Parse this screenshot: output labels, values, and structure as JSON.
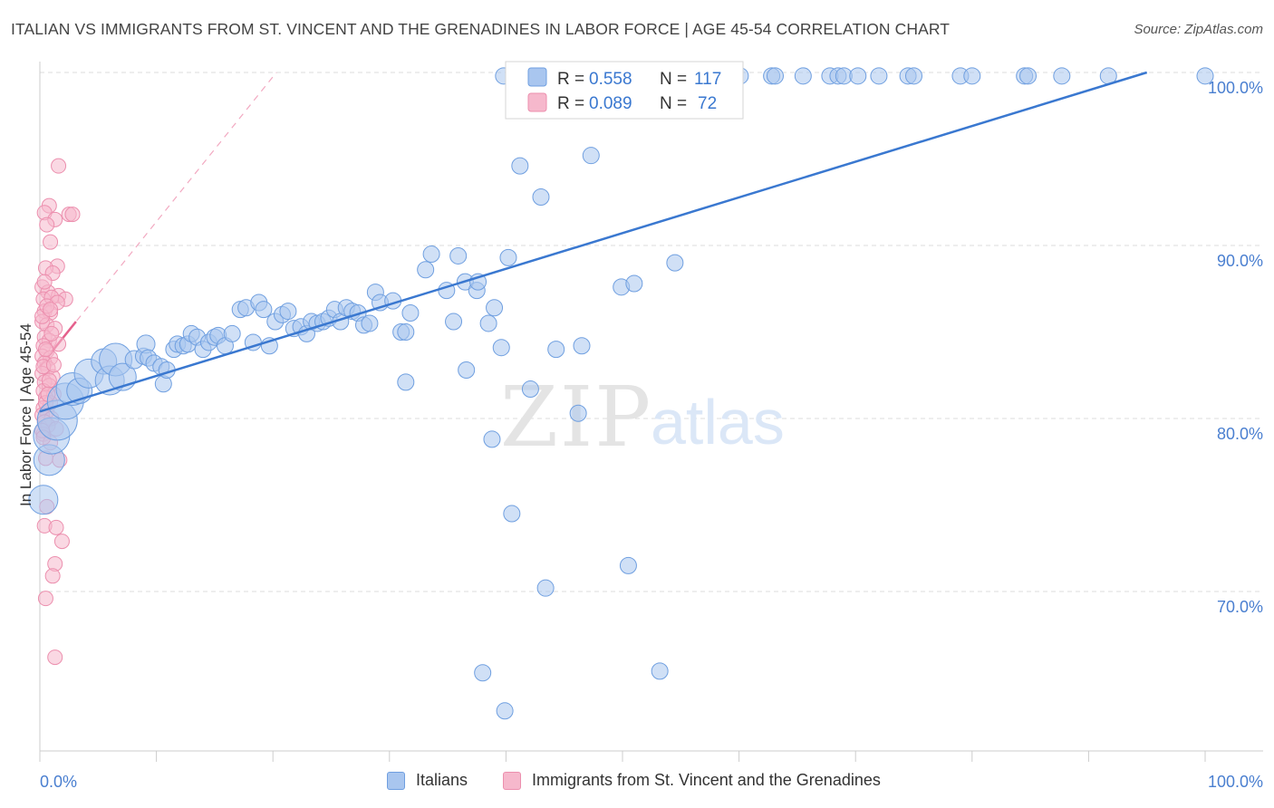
{
  "title": "ITALIAN VS IMMIGRANTS FROM ST. VINCENT AND THE GRENADINES IN LABOR FORCE | AGE 45-54 CORRELATION CHART",
  "source": "Source: ZipAtlas.com",
  "watermark": {
    "zip": "ZIP",
    "atlas": "atlas"
  },
  "legend_box": {
    "rows": [
      {
        "r_label": "R = ",
        "r_value": "0.558",
        "n_label": "N = ",
        "n_value": "117"
      },
      {
        "r_label": "R = ",
        "r_value": "0.089",
        "n_label": "N = ",
        "n_value": "72"
      }
    ]
  },
  "bottom_legend": {
    "items": [
      "Italians",
      "Immigrants from St. Vincent and the Grenadines"
    ]
  },
  "colors": {
    "blue_fill": "#a9c6ef",
    "blue_stroke": "#6f9fe0",
    "blue_line": "#3a78d0",
    "pink_fill": "#f6b8cc",
    "pink_stroke": "#ec8fae",
    "pink_line": "#e5608c",
    "axis_text": "#4a7fd0",
    "grid": "#dddddd"
  },
  "chart_data": {
    "type": "scatter",
    "title": "ITALIAN VS IMMIGRANTS FROM ST. VINCENT AND THE GRENADINES IN LABOR FORCE | AGE 45-54 CORRELATION CHART",
    "xlabel": "",
    "ylabel": "In Labor Force | Age 45-54",
    "xlim": [
      0,
      100
    ],
    "ylim": [
      61,
      101
    ],
    "x_tick_labels": [
      "0.0%",
      "100.0%"
    ],
    "y_tick_labels": [
      "100.0%",
      "90.0%",
      "80.0%",
      "70.0%"
    ],
    "y_ticks": [
      100,
      90,
      80,
      70
    ],
    "grid": true,
    "series": [
      {
        "name": "Italians",
        "R": 0.558,
        "N": 117,
        "trend": {
          "x": [
            0,
            95
          ],
          "y": [
            80.4,
            100.0
          ]
        },
        "points": [
          [
            0.3,
            75.3,
            16
          ],
          [
            0.8,
            77.6,
            17
          ],
          [
            1.0,
            79.0,
            20
          ],
          [
            1.5,
            79.9,
            22
          ],
          [
            2.2,
            81.0,
            20
          ],
          [
            2.8,
            81.7,
            18
          ],
          [
            3.4,
            81.6,
            14
          ],
          [
            4.2,
            82.6,
            16
          ],
          [
            5.5,
            83.3,
            14
          ],
          [
            6.0,
            82.2,
            16
          ],
          [
            6.5,
            83.4,
            18
          ],
          [
            7.1,
            82.4,
            15
          ],
          [
            8.1,
            83.4,
            10
          ],
          [
            8.9,
            83.6,
            9
          ],
          [
            9.1,
            84.3,
            10
          ],
          [
            9.3,
            83.5,
            9
          ],
          [
            9.8,
            83.2,
            9
          ],
          [
            10.4,
            83.0,
            9
          ],
          [
            10.6,
            82.0,
            9
          ],
          [
            10.9,
            82.8,
            9
          ],
          [
            11.5,
            84.0,
            9
          ],
          [
            11.8,
            84.3,
            9
          ],
          [
            12.3,
            84.2,
            9
          ],
          [
            12.7,
            84.3,
            9
          ],
          [
            13.0,
            84.9,
            9
          ],
          [
            13.5,
            84.7,
            9
          ],
          [
            14.0,
            84.0,
            9
          ],
          [
            14.5,
            84.4,
            9
          ],
          [
            15.0,
            84.7,
            9
          ],
          [
            15.3,
            84.8,
            9
          ],
          [
            15.9,
            84.2,
            9
          ],
          [
            16.5,
            84.9,
            9
          ],
          [
            17.2,
            86.3,
            9
          ],
          [
            17.7,
            86.4,
            9
          ],
          [
            18.3,
            84.4,
            9
          ],
          [
            18.8,
            86.7,
            9
          ],
          [
            19.2,
            86.3,
            9
          ],
          [
            19.7,
            84.2,
            9
          ],
          [
            20.2,
            85.6,
            9
          ],
          [
            20.8,
            86.0,
            9
          ],
          [
            21.3,
            86.2,
            9
          ],
          [
            21.8,
            85.2,
            9
          ],
          [
            22.4,
            85.3,
            9
          ],
          [
            22.9,
            84.9,
            9
          ],
          [
            23.3,
            85.6,
            9
          ],
          [
            23.8,
            85.5,
            9
          ],
          [
            24.3,
            85.6,
            9
          ],
          [
            24.8,
            85.8,
            9
          ],
          [
            25.3,
            86.3,
            9
          ],
          [
            25.8,
            85.6,
            9
          ],
          [
            26.3,
            86.4,
            9
          ],
          [
            26.8,
            86.2,
            9
          ],
          [
            27.3,
            86.1,
            9
          ],
          [
            27.8,
            85.4,
            9
          ],
          [
            28.3,
            85.5,
            9
          ],
          [
            28.8,
            87.3,
            9
          ],
          [
            29.2,
            86.7,
            9
          ],
          [
            30.3,
            86.8,
            9
          ],
          [
            31.0,
            85.0,
            9
          ],
          [
            31.4,
            85.0,
            9
          ],
          [
            31.8,
            86.1,
            9
          ],
          [
            33.1,
            88.6,
            9
          ],
          [
            33.6,
            89.5,
            9
          ],
          [
            34.9,
            87.4,
            9
          ],
          [
            35.5,
            85.6,
            9
          ],
          [
            35.9,
            89.4,
            9
          ],
          [
            36.5,
            87.9,
            9
          ],
          [
            37.5,
            87.4,
            9
          ],
          [
            37.6,
            87.9,
            9
          ],
          [
            38.5,
            85.5,
            9
          ],
          [
            39.0,
            86.4,
            9
          ],
          [
            39.6,
            84.1,
            9
          ],
          [
            40.2,
            89.3,
            9
          ],
          [
            31.4,
            82.1,
            9
          ],
          [
            36.6,
            82.8,
            9
          ],
          [
            38.8,
            78.8,
            9
          ],
          [
            39.8,
            99.8,
            9
          ],
          [
            40.5,
            74.5,
            9
          ],
          [
            41.2,
            94.6,
            9
          ],
          [
            42.1,
            81.7,
            9
          ],
          [
            43.0,
            92.8,
            9
          ],
          [
            43.4,
            70.2,
            9
          ],
          [
            44.3,
            84.0,
            9
          ],
          [
            44.6,
            99.8,
            9
          ],
          [
            45.1,
            99.8,
            9
          ],
          [
            46.2,
            80.3,
            9
          ],
          [
            46.5,
            84.2,
            9
          ],
          [
            47.3,
            95.2,
            9
          ],
          [
            47.3,
            99.8,
            9
          ],
          [
            49.9,
            87.6,
            9
          ],
          [
            50.5,
            71.5,
            9
          ],
          [
            51.0,
            87.8,
            9
          ],
          [
            51.3,
            99.8,
            9
          ],
          [
            53.2,
            65.4,
            9
          ],
          [
            54.5,
            89.0,
            9
          ],
          [
            55.2,
            99.8,
            9
          ],
          [
            56.0,
            99.8,
            9
          ],
          [
            60.1,
            99.8,
            9
          ],
          [
            62.8,
            99.8,
            9
          ],
          [
            63.1,
            99.8,
            9
          ],
          [
            65.5,
            99.8,
            9
          ],
          [
            67.8,
            99.8,
            9
          ],
          [
            68.5,
            99.8,
            9
          ],
          [
            69.0,
            99.8,
            9
          ],
          [
            70.2,
            99.8,
            9
          ],
          [
            72.0,
            99.8,
            9
          ],
          [
            74.5,
            99.8,
            9
          ],
          [
            75.0,
            99.8,
            9
          ],
          [
            79.0,
            99.8,
            9
          ],
          [
            80.0,
            99.8,
            9
          ],
          [
            84.5,
            99.8,
            9
          ],
          [
            84.8,
            99.8,
            9
          ],
          [
            87.7,
            99.8,
            9
          ],
          [
            91.7,
            99.8,
            9
          ],
          [
            100.0,
            99.8,
            9
          ],
          [
            38.0,
            65.3,
            9
          ],
          [
            39.9,
            63.1,
            9
          ]
        ]
      },
      {
        "name": "Immigrants from St. Vincent and the Grenadines",
        "R": 0.089,
        "N": 72,
        "trend": {
          "x": [
            0,
            3.1
          ],
          "y": [
            83.0,
            85.6
          ]
        },
        "trend_ext": {
          "x": [
            0,
            20.3
          ],
          "y": [
            83.0,
            100.0
          ]
        },
        "points": [
          [
            1.6,
            94.6
          ],
          [
            0.8,
            92.3
          ],
          [
            0.4,
            91.9
          ],
          [
            2.5,
            91.8
          ],
          [
            2.8,
            91.8
          ],
          [
            1.3,
            91.5
          ],
          [
            0.6,
            91.2
          ],
          [
            0.9,
            90.2
          ],
          [
            1.5,
            88.8
          ],
          [
            0.5,
            88.7
          ],
          [
            1.1,
            88.4
          ],
          [
            0.2,
            87.6
          ],
          [
            0.7,
            87.3
          ],
          [
            1.6,
            87.1
          ],
          [
            0.3,
            86.9
          ],
          [
            2.2,
            86.9
          ],
          [
            1.0,
            87.0
          ],
          [
            1.5,
            86.7
          ],
          [
            0.4,
            86.2
          ],
          [
            0.9,
            86.1
          ],
          [
            0.2,
            85.6
          ],
          [
            0.6,
            85.4
          ],
          [
            1.3,
            85.2
          ],
          [
            0.4,
            84.7
          ],
          [
            0.8,
            84.5
          ],
          [
            0.3,
            84.2
          ],
          [
            1.6,
            84.3
          ],
          [
            0.6,
            83.9
          ],
          [
            0.2,
            83.6
          ],
          [
            0.9,
            83.5
          ],
          [
            0.4,
            83.2
          ],
          [
            0.7,
            82.9
          ],
          [
            0.2,
            82.6
          ],
          [
            1.1,
            82.4
          ],
          [
            0.4,
            82.1
          ],
          [
            0.8,
            81.9
          ],
          [
            0.3,
            81.6
          ],
          [
            1.2,
            81.4
          ],
          [
            0.5,
            81.2
          ],
          [
            0.9,
            80.9
          ],
          [
            0.3,
            80.6
          ],
          [
            0.6,
            80.4
          ],
          [
            0.2,
            80.2
          ],
          [
            1.0,
            80.0
          ],
          [
            0.4,
            79.8
          ],
          [
            0.7,
            79.6
          ],
          [
            1.4,
            79.4
          ],
          [
            0.3,
            79.1
          ],
          [
            0.9,
            78.6
          ],
          [
            0.5,
            77.7
          ],
          [
            1.7,
            77.6
          ],
          [
            0.6,
            74.9
          ],
          [
            0.4,
            73.8
          ],
          [
            1.4,
            73.7
          ],
          [
            1.9,
            72.9
          ],
          [
            1.3,
            71.6
          ],
          [
            1.1,
            70.9
          ],
          [
            0.5,
            69.6
          ],
          [
            1.3,
            66.2
          ],
          [
            0.2,
            85.9
          ],
          [
            0.6,
            86.5
          ],
          [
            0.3,
            83.0
          ],
          [
            0.8,
            82.2
          ],
          [
            0.5,
            80.9
          ],
          [
            0.2,
            79.3
          ],
          [
            1.0,
            84.9
          ],
          [
            0.4,
            87.9
          ],
          [
            0.7,
            81.4
          ],
          [
            0.3,
            78.9
          ],
          [
            1.2,
            83.1
          ],
          [
            0.9,
            86.3
          ],
          [
            0.5,
            84.0
          ]
        ]
      }
    ]
  }
}
